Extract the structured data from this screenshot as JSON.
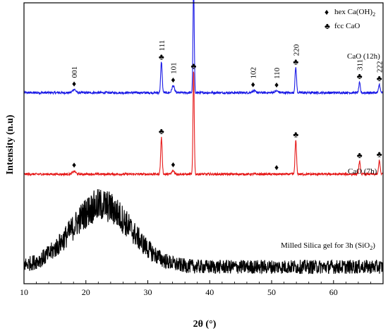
{
  "chart_data": {
    "type": "line",
    "title": "",
    "xlabel": "2θ (°)",
    "ylabel": "Intensity (n.u)",
    "xlim": [
      10,
      68
    ],
    "xticks": [
      10,
      20,
      30,
      40,
      50,
      60
    ],
    "grid": false,
    "legend": {
      "placement": "top-right",
      "entries": [
        {
          "symbol": "♦",
          "label": "hex Ca(OH)",
          "subscript": "2"
        },
        {
          "symbol": "♣",
          "label": "fcc CaO"
        }
      ]
    },
    "series": [
      {
        "name": "CaO (12h)",
        "color": "#1a1ae6",
        "baseline": 0.68,
        "noise": 0.004,
        "peaks": [
          {
            "x": 18.1,
            "h": 0.012,
            "w": 0.25
          },
          {
            "x": 32.2,
            "h": 0.11,
            "w": 0.12
          },
          {
            "x": 34.1,
            "h": 0.025,
            "w": 0.2
          },
          {
            "x": 37.4,
            "h": 0.38,
            "w": 0.1
          },
          {
            "x": 47.1,
            "h": 0.006,
            "w": 0.3
          },
          {
            "x": 50.8,
            "h": 0.006,
            "w": 0.3
          },
          {
            "x": 53.9,
            "h": 0.09,
            "w": 0.12
          },
          {
            "x": 64.2,
            "h": 0.035,
            "w": 0.12
          },
          {
            "x": 67.4,
            "h": 0.03,
            "w": 0.12
          }
        ],
        "annotations": [
          {
            "x": 18.1,
            "symbol": "♦",
            "label": "001"
          },
          {
            "x": 32.2,
            "symbol": "♣",
            "label": "111"
          },
          {
            "x": 34.1,
            "symbol": "♦",
            "label": "101"
          },
          {
            "x": 37.4,
            "symbol": "♣",
            "label": "200"
          },
          {
            "x": 47.0,
            "symbol": "♦",
            "label": "102"
          },
          {
            "x": 50.8,
            "symbol": "♦",
            "label": "110"
          },
          {
            "x": 53.9,
            "symbol": "♣",
            "label": "220"
          },
          {
            "x": 64.2,
            "symbol": "♣",
            "label": "311"
          },
          {
            "x": 67.4,
            "symbol": "♣",
            "label": "222"
          }
        ]
      },
      {
        "name": "CaO (7h)",
        "color": "#e61a1a",
        "baseline": 0.39,
        "noise": 0.004,
        "peaks": [
          {
            "x": 18.1,
            "h": 0.01,
            "w": 0.25
          },
          {
            "x": 32.2,
            "h": 0.13,
            "w": 0.12
          },
          {
            "x": 34.1,
            "h": 0.012,
            "w": 0.2
          },
          {
            "x": 37.4,
            "h": 0.37,
            "w": 0.1
          },
          {
            "x": 53.9,
            "h": 0.12,
            "w": 0.12
          },
          {
            "x": 64.2,
            "h": 0.045,
            "w": 0.12
          },
          {
            "x": 67.4,
            "h": 0.05,
            "w": 0.12
          }
        ],
        "annotations": [
          {
            "x": 18.1,
            "symbol": "♦",
            "label": ""
          },
          {
            "x": 32.2,
            "symbol": "♣",
            "label": ""
          },
          {
            "x": 34.1,
            "symbol": "♦",
            "label": ""
          },
          {
            "x": 37.4,
            "symbol": "♣",
            "label": ""
          },
          {
            "x": 50.8,
            "symbol": "♦",
            "label": ""
          },
          {
            "x": 53.9,
            "symbol": "♣",
            "label": ""
          },
          {
            "x": 64.2,
            "symbol": "♣",
            "label": ""
          },
          {
            "x": 67.4,
            "symbol": "♣",
            "label": ""
          }
        ]
      },
      {
        "name": "Milled Silica gel for 3h (SiO2)",
        "label_main": "Milled Silica gel for 3h",
        "label_formula": "SiO",
        "label_subscript": "2",
        "color": "#000000",
        "baseline": 0.0,
        "noise": 0.025,
        "hump": {
          "x": 22.5,
          "h": 0.22,
          "w": 4.8
        },
        "annotations": []
      }
    ]
  }
}
